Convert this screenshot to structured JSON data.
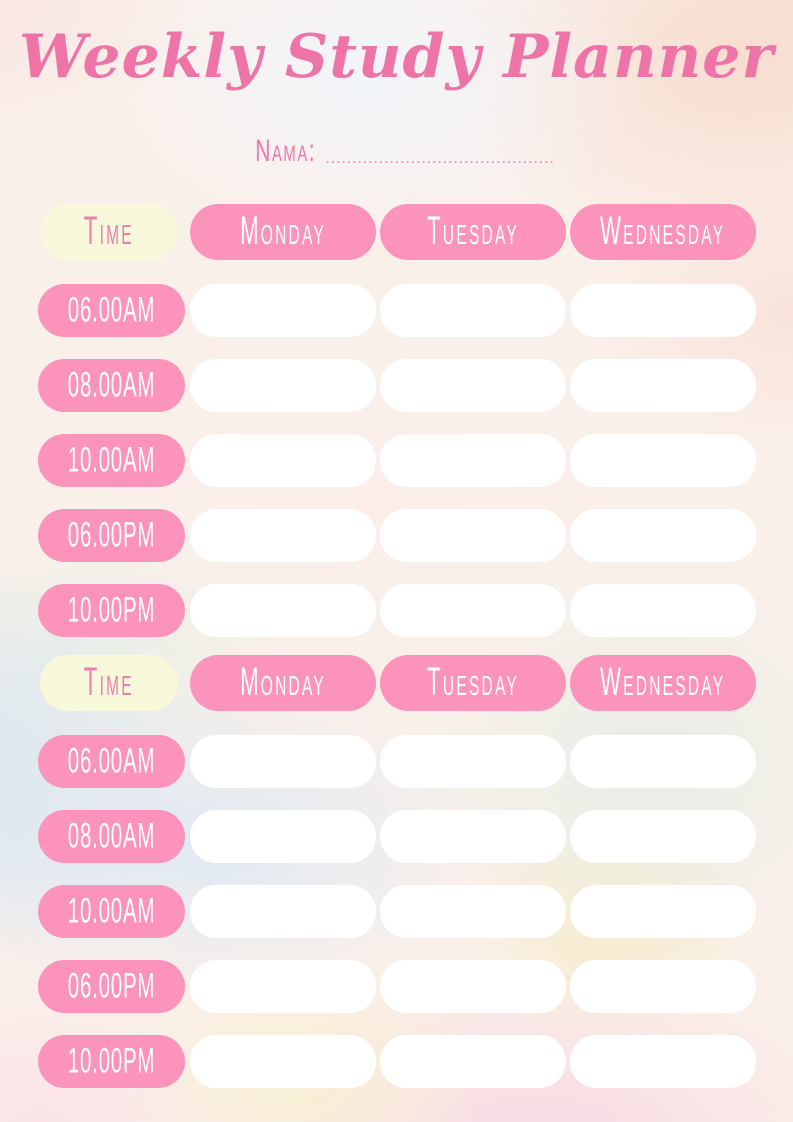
{
  "page": {
    "title": "Weekly Study Planner",
    "name_label": "Nama:",
    "name_line": "..........................................."
  },
  "colors": {
    "pill_pink": "#fb93bb",
    "pill_yellow": "#f8f8db",
    "cell_white": "#ffffff",
    "title_pink": "#ee74a8",
    "time_header_text_pink": "#e87fb0",
    "pill_text_white": "#ffffff"
  },
  "grids": [
    {
      "header": {
        "time": "Time",
        "days": [
          "Monday",
          "Tuesday",
          "Wednesday"
        ]
      },
      "time_rows": [
        "06.00AM",
        "08.00AM",
        "10.00AM",
        "06.00PM",
        "10.00PM"
      ]
    },
    {
      "header": {
        "time": "Time",
        "days": [
          "Monday",
          "Tuesday",
          "Wednesday"
        ]
      },
      "time_rows": [
        "06.00AM",
        "08.00AM",
        "10.00AM",
        "06.00PM",
        "10.00PM"
      ]
    }
  ]
}
